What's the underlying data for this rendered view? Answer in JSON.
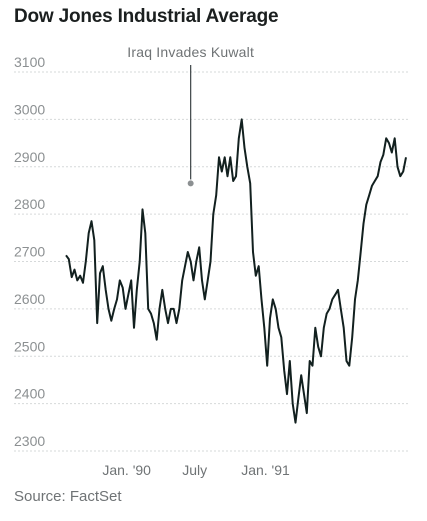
{
  "title": "Dow Jones Industrial Average",
  "source": "Source: FactSet",
  "chart_data": {
    "type": "line",
    "ylim": [
      2300,
      3100
    ],
    "yticks": [
      2300,
      2400,
      2500,
      2600,
      2700,
      2800,
      2900,
      3000,
      3100
    ],
    "xticks": [
      "Jan. '90",
      "July",
      "Jan. '91"
    ],
    "grid": true,
    "line_color": "#12201f",
    "annotation": {
      "label": "Iraq Invades Kuwalt",
      "x_index": 44,
      "y": 2865
    },
    "series": [
      {
        "values": [
          2713,
          2705,
          2667,
          2683,
          2660,
          2670,
          2655,
          2700,
          2760,
          2785,
          2745,
          2570,
          2675,
          2690,
          2640,
          2600,
          2575,
          2600,
          2620,
          2660,
          2645,
          2600,
          2630,
          2660,
          2560,
          2640,
          2700,
          2810,
          2760,
          2600,
          2590,
          2570,
          2535,
          2600,
          2640,
          2600,
          2570,
          2600,
          2600,
          2570,
          2600,
          2660,
          2690,
          2720,
          2700,
          2660,
          2700,
          2730,
          2660,
          2620,
          2660,
          2700,
          2800,
          2840,
          2920,
          2890,
          2920,
          2880,
          2920,
          2870,
          2880,
          2960,
          3000,
          2940,
          2900,
          2865,
          2720,
          2670,
          2690,
          2620,
          2560,
          2480,
          2580,
          2620,
          2600,
          2560,
          2540,
          2470,
          2420,
          2490,
          2400,
          2360,
          2410,
          2460,
          2420,
          2380,
          2490,
          2480,
          2560,
          2520,
          2500,
          2560,
          2590,
          2600,
          2620,
          2630,
          2640,
          2600,
          2560,
          2490,
          2480,
          2540,
          2620,
          2660,
          2720,
          2780,
          2820,
          2840,
          2860,
          2870,
          2880,
          2910,
          2925,
          2960,
          2950,
          2930,
          2960,
          2900,
          2880,
          2890,
          2920
        ]
      }
    ]
  }
}
